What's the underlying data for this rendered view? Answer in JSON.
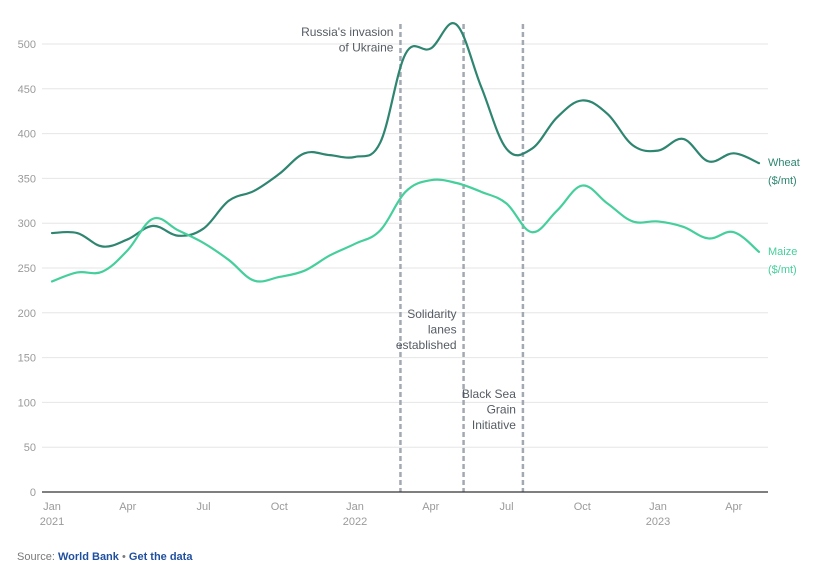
{
  "chart_data": {
    "type": "line",
    "title": "",
    "xlabel": "",
    "ylabel": "",
    "ylim": [
      0,
      500
    ],
    "yticks": [
      0,
      50,
      100,
      150,
      200,
      250,
      300,
      350,
      400,
      450,
      500
    ],
    "grid": true,
    "x": [
      "2021-01",
      "2021-02",
      "2021-03",
      "2021-04",
      "2021-05",
      "2021-06",
      "2021-07",
      "2021-08",
      "2021-09",
      "2021-10",
      "2021-11",
      "2021-12",
      "2022-01",
      "2022-02",
      "2022-03",
      "2022-04",
      "2022-05",
      "2022-06",
      "2022-07",
      "2022-08",
      "2022-09",
      "2022-10",
      "2022-11",
      "2022-12",
      "2023-01",
      "2023-02",
      "2023-03",
      "2023-04",
      "2023-05"
    ],
    "xticks": [
      {
        "month": "2021-01",
        "label": "Jan",
        "year": "2021"
      },
      {
        "month": "2021-04",
        "label": "Apr",
        "year": ""
      },
      {
        "month": "2021-07",
        "label": "Jul",
        "year": ""
      },
      {
        "month": "2021-10",
        "label": "Oct",
        "year": ""
      },
      {
        "month": "2022-01",
        "label": "Jan",
        "year": "2022"
      },
      {
        "month": "2022-04",
        "label": "Apr",
        "year": ""
      },
      {
        "month": "2022-07",
        "label": "Jul",
        "year": ""
      },
      {
        "month": "2022-10",
        "label": "Oct",
        "year": ""
      },
      {
        "month": "2023-01",
        "label": "Jan",
        "year": "2023"
      },
      {
        "month": "2023-04",
        "label": "Apr",
        "year": ""
      }
    ],
    "series": [
      {
        "name": "Wheat",
        "unit": "($/mt)",
        "color": "#2e8570",
        "values": [
          289,
          289,
          274,
          282,
          297,
          286,
          294,
          325,
          336,
          355,
          378,
          376,
          374,
          390,
          489,
          495,
          522,
          452,
          383,
          383,
          418,
          437,
          422,
          387,
          381,
          394,
          369,
          378,
          367
        ]
      },
      {
        "name": "Maize",
        "unit": "($/mt)",
        "color": "#45cf9c",
        "values": [
          235,
          245,
          246,
          270,
          305,
          292,
          278,
          259,
          236,
          240,
          247,
          264,
          277,
          292,
          335,
          348,
          345,
          335,
          322,
          290,
          314,
          342,
          322,
          302,
          302,
          296,
          283,
          290,
          268
        ]
      }
    ],
    "annotations": [
      {
        "month_pos": 13.8,
        "lines": [
          "Russia's invasion",
          "of Ukraine"
        ],
        "placement": "top-left"
      },
      {
        "month_pos": 16.3,
        "lines": [
          "Solidarity",
          "lanes",
          "established"
        ],
        "placement": "middle-left"
      },
      {
        "month_pos": 18.65,
        "lines": [
          "Black Sea",
          "Grain",
          "Initiative"
        ],
        "placement": "lower-left"
      }
    ]
  },
  "footer": {
    "source_label": "Source:",
    "source_link": "World Bank",
    "separator": "•",
    "data_link": "Get the data"
  },
  "colors": {
    "wheat": "#2e8570",
    "maize": "#45cf9c",
    "annotation_line": "#a3a9b3",
    "grid": "#e6e6e6",
    "link": "#1f4f9e"
  }
}
